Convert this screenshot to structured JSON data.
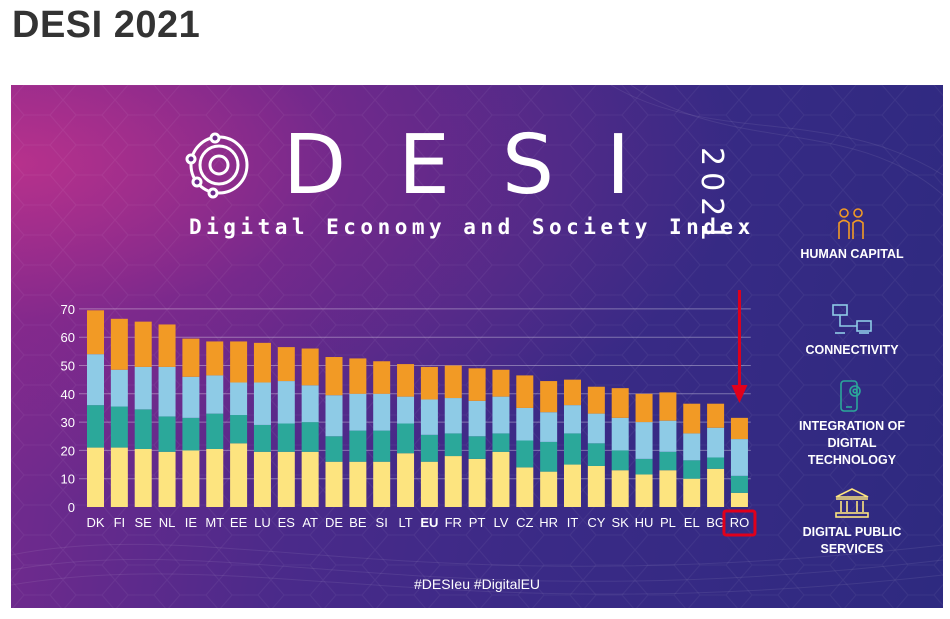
{
  "page": {
    "title": "DESI 2021"
  },
  "banner": {
    "logo_text": "DESI",
    "subtitle": "Digital Economy and Society Index",
    "year": "2021",
    "hashtags": "#DESIeu  #DigitalEU"
  },
  "categories": [
    {
      "label": "HUMAN CAPITAL",
      "icon": "people-icon"
    },
    {
      "label": "CONNECTIVITY",
      "icon": "network-icon"
    },
    {
      "label": "INTEGRATION OF DIGITAL TECHNOLOGY",
      "icon": "phone-gear-icon"
    },
    {
      "label": "DIGITAL PUBLIC SERVICES",
      "icon": "building-icon"
    }
  ],
  "colors": {
    "digital_public_services": "#fde47f",
    "integration_of_digital_technology": "#2ba89a",
    "connectivity": "#8ecbe6",
    "human_capital": "#f29a25",
    "highlight": "#e0001b"
  },
  "chart_data": {
    "type": "bar",
    "stacked": true,
    "highlight_category": "RO",
    "categories": [
      "DK",
      "FI",
      "SE",
      "NL",
      "IE",
      "MT",
      "EE",
      "LU",
      "ES",
      "AT",
      "DE",
      "BE",
      "SI",
      "LT",
      "EU",
      "FR",
      "PT",
      "LV",
      "CZ",
      "HR",
      "IT",
      "CY",
      "SK",
      "HU",
      "PL",
      "EL",
      "BG",
      "RO"
    ],
    "series": [
      {
        "name": "DIGITAL PUBLIC SERVICES",
        "color": "#fde47f",
        "values": [
          21,
          21,
          20.5,
          19.5,
          20,
          20.5,
          22.5,
          19.5,
          19.5,
          19.5,
          16,
          16,
          16,
          19,
          16,
          18,
          17,
          19.5,
          14,
          12.5,
          15,
          14.5,
          13,
          11.5,
          13,
          10,
          13.5,
          5
        ]
      },
      {
        "name": "INTEGRATION OF DIGITAL TECHNOLOGY",
        "color": "#2ba89a",
        "values": [
          15,
          14.5,
          14,
          12.5,
          11.5,
          12.5,
          10,
          9.5,
          10,
          10.5,
          9,
          11,
          11,
          10.5,
          9.5,
          8,
          8,
          6.5,
          9.5,
          10.5,
          11,
          8,
          7,
          5.5,
          6.5,
          6.5,
          4,
          6
        ]
      },
      {
        "name": "CONNECTIVITY",
        "color": "#8ecbe6",
        "values": [
          18,
          13,
          15,
          17.5,
          14.5,
          13.5,
          11.5,
          15,
          15,
          13,
          14.5,
          13,
          13,
          9.5,
          12.5,
          12.5,
          12.5,
          13,
          11.5,
          10.5,
          10,
          10.5,
          11.5,
          13,
          11,
          9.5,
          10.5,
          13
        ]
      },
      {
        "name": "HUMAN CAPITAL",
        "color": "#f29a25",
        "values": [
          15.5,
          18,
          16,
          15,
          13.5,
          12,
          14.5,
          14,
          12,
          13,
          13.5,
          12.5,
          11.5,
          11.5,
          11.5,
          11.5,
          11.5,
          9.5,
          11.5,
          11,
          9,
          9.5,
          10.5,
          10,
          10,
          10.5,
          8.5,
          7.5
        ]
      }
    ],
    "yticks": [
      0,
      10,
      20,
      30,
      40,
      50,
      60,
      70
    ],
    "ylim": [
      0,
      70
    ]
  }
}
